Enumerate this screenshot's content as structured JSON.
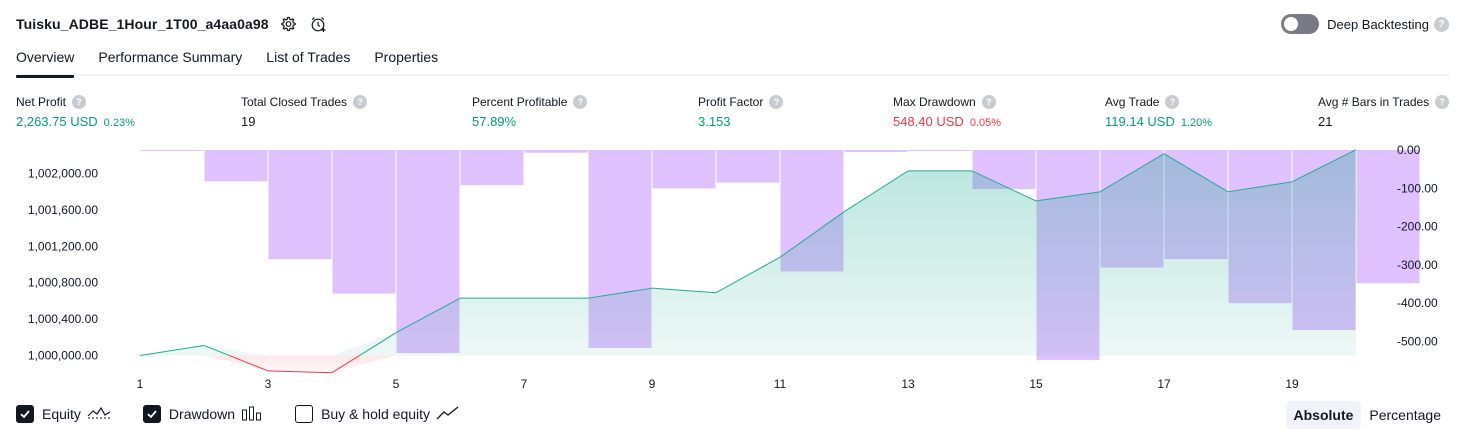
{
  "header": {
    "strategy_title": "Tuisku_ADBE_1Hour_1T00_a4aa0a98",
    "deep_backtesting_label": "Deep Backtesting",
    "help_glyph": "?"
  },
  "tabs": [
    {
      "label": "Overview",
      "active": true
    },
    {
      "label": "Performance Summary",
      "active": false
    },
    {
      "label": "List of Trades",
      "active": false
    },
    {
      "label": "Properties",
      "active": false
    }
  ],
  "metrics": [
    {
      "label": "Net Profit",
      "value": "2,263.75 USD",
      "sub": "0.23%",
      "tone": "green"
    },
    {
      "label": "Total Closed Trades",
      "value": "19",
      "sub": "",
      "tone": "plain"
    },
    {
      "label": "Percent Profitable",
      "value": "57.89%",
      "sub": "",
      "tone": "green"
    },
    {
      "label": "Profit Factor",
      "value": "3.153",
      "sub": "",
      "tone": "green"
    },
    {
      "label": "Max Drawdown",
      "value": "548.40 USD",
      "sub": "0.05%",
      "tone": "red"
    },
    {
      "label": "Avg Trade",
      "value": "119.14 USD",
      "sub": "1.20%",
      "tone": "green"
    },
    {
      "label": "Avg # Bars in Trades",
      "value": "21",
      "sub": "",
      "tone": "plain"
    }
  ],
  "legend": {
    "equity_label": "Equity",
    "drawdown_label": "Drawdown",
    "buy_hold_label": "Buy & hold equity",
    "equity_checked": true,
    "drawdown_checked": true,
    "buy_hold_checked": false
  },
  "view_mode": {
    "absolute_label": "Absolute",
    "percentage_label": "Percentage",
    "selected": "Absolute"
  },
  "colors": {
    "equity": "#22ab94",
    "equity_loss": "#f23645",
    "drawdown": "#c084fc",
    "positive": "#089981",
    "negative": "#f23645"
  },
  "chart_data": {
    "type": "line",
    "x_tick_labels": [
      "1",
      "3",
      "5",
      "7",
      "9",
      "11",
      "13",
      "15",
      "17",
      "19"
    ],
    "left_axis": {
      "tick_labels": [
        "1,002,000.00",
        "1,001,600.00",
        "1,001,200.00",
        "1,000,800.00",
        "1,000,400.00",
        "1,000,000.00"
      ],
      "ticks": [
        1002000,
        1001600,
        1001200,
        1000800,
        1000400,
        1000000
      ],
      "range": [
        999950,
        1002260
      ]
    },
    "right_axis": {
      "tick_labels": [
        "0.00",
        "-100.00",
        "-200.00",
        "-300.00",
        "-400.00",
        "-500.00"
      ],
      "ticks": [
        0,
        -100,
        -200,
        -300,
        -400,
        -500
      ],
      "range": [
        -548.4,
        0
      ]
    },
    "series": [
      {
        "name": "Equity",
        "x": [
          1,
          2,
          3,
          4,
          5,
          6,
          7,
          8,
          9,
          10,
          11,
          12,
          13,
          14,
          15,
          16,
          17,
          18,
          19,
          20
        ],
        "values": [
          1000000,
          1000110,
          999830,
          999810,
          1000250,
          1000630,
          1000630,
          1000630,
          1000740,
          1000690,
          1001080,
          1001580,
          1002030,
          1002030,
          1001700,
          1001800,
          1002220,
          1001800,
          1001910,
          1002263.75
        ]
      },
      {
        "name": "Drawdown",
        "x": [
          1,
          2,
          3,
          4,
          5,
          6,
          7,
          8,
          9,
          10,
          11,
          12,
          13,
          14,
          15,
          16,
          17,
          18,
          19,
          20
        ],
        "values": [
          -1,
          -82,
          -285,
          -375,
          -530,
          -92,
          -7,
          -517,
          -100,
          -85,
          -317,
          -5,
          -2,
          -102,
          -548.4,
          -307,
          -285,
          -400,
          -470,
          -348
        ]
      }
    ]
  }
}
